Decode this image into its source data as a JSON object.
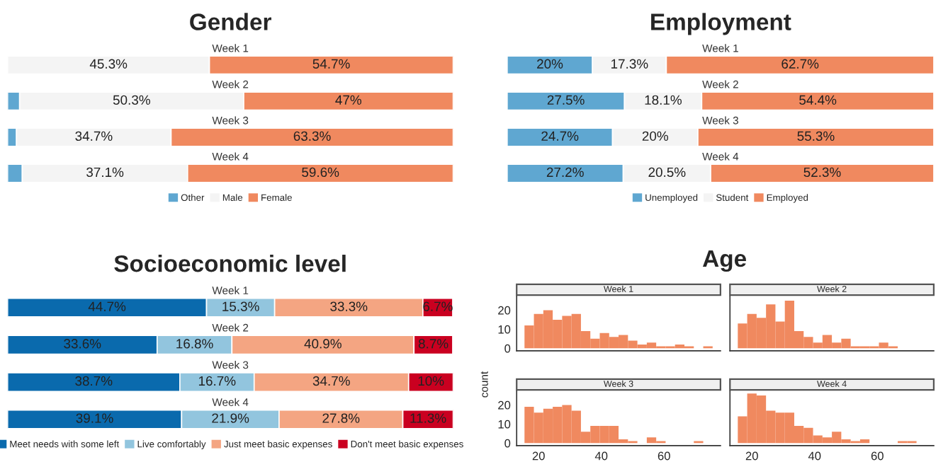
{
  "chart_data": [
    {
      "type": "bar",
      "orientation": "horizontal",
      "stacked": true,
      "title": "Gender",
      "categories": [
        "Week 1",
        "Week 2",
        "Week 3",
        "Week 4"
      ],
      "legend": "bottom",
      "series": [
        {
          "name": "Other",
          "color": "#5fa7d1",
          "values": [
            0,
            2.7,
            2.0,
            3.3
          ],
          "value_labels": [
            null,
            null,
            null,
            null
          ]
        },
        {
          "name": "Male",
          "color": "#f4f4f4",
          "values": [
            45.3,
            50.3,
            34.7,
            37.1
          ],
          "value_labels": [
            "45.3%",
            "50.3%",
            "34.7%",
            "37.1%"
          ]
        },
        {
          "name": "Female",
          "color": "#f0895f",
          "values": [
            54.7,
            47,
            63.3,
            59.6
          ],
          "value_labels": [
            "54.7%",
            "47%",
            "63.3%",
            "59.6%"
          ]
        }
      ]
    },
    {
      "type": "bar",
      "orientation": "horizontal",
      "stacked": true,
      "title": "Employment",
      "categories": [
        "Week 1",
        "Week 2",
        "Week 3",
        "Week 4"
      ],
      "legend": "bottom",
      "series": [
        {
          "name": "Unemployed",
          "color": "#5fa7d1",
          "values": [
            20,
            27.5,
            24.7,
            27.2
          ],
          "value_labels": [
            "20%",
            "27.5%",
            "24.7%",
            "27.2%"
          ]
        },
        {
          "name": "Student",
          "color": "#f4f4f4",
          "values": [
            17.3,
            18.1,
            20,
            20.5
          ],
          "value_labels": [
            "17.3%",
            "18.1%",
            "20%",
            "20.5%"
          ]
        },
        {
          "name": "Employed",
          "color": "#f0895f",
          "values": [
            62.7,
            54.4,
            55.3,
            52.3
          ],
          "value_labels": [
            "62.7%",
            "54.4%",
            "55.3%",
            "52.3%"
          ]
        }
      ]
    },
    {
      "type": "bar",
      "orientation": "horizontal",
      "stacked": true,
      "title": "Socioeconomic level",
      "categories": [
        "Week 1",
        "Week 2",
        "Week 3",
        "Week 4"
      ],
      "legend": "bottom",
      "series": [
        {
          "name": "Meet needs with some left",
          "color": "#0a6aad",
          "values": [
            44.7,
            33.6,
            38.7,
            39.1
          ],
          "value_labels": [
            "44.7%",
            "33.6%",
            "38.7%",
            "39.1%"
          ]
        },
        {
          "name": "Live comfortably",
          "color": "#92c5de",
          "values": [
            15.3,
            16.8,
            16.7,
            21.9
          ],
          "value_labels": [
            "15.3%",
            "16.8%",
            "16.7%",
            "21.9%"
          ]
        },
        {
          "name": "Just meet basic expenses",
          "color": "#f4a582",
          "values": [
            33.3,
            40.9,
            34.7,
            27.8
          ],
          "value_labels": [
            "33.3%",
            "40.9%",
            "34.7%",
            "27.8%"
          ]
        },
        {
          "name": "Don't meet basic expenses",
          "color": "#ca0020",
          "values": [
            6.7,
            8.7,
            10,
            11.3
          ],
          "value_labels": [
            "6.7%",
            "8.7%",
            "10%",
            "11.3%"
          ]
        }
      ]
    },
    {
      "type": "histogram",
      "title": "Age",
      "subtitle": "Week 1",
      "color": "#f0895f",
      "bins": [
        15.5,
        18.5,
        21.5,
        24.5,
        27.5,
        30.5,
        33.5,
        36.5,
        39.5,
        42.5,
        45.5,
        48.5,
        51.5,
        54.5,
        57.5,
        60.5,
        63.5,
        66.5,
        69.5,
        72.5,
        75.5
      ],
      "values": [
        12,
        18,
        20,
        15,
        17,
        18,
        9,
        5,
        8,
        6,
        7,
        4,
        2,
        3,
        1,
        1,
        2,
        1,
        0,
        1
      ],
      "xlim": [
        13,
        78
      ],
      "ylim": [
        -1.3,
        27.3
      ],
      "xticks": [
        20,
        40,
        60
      ],
      "yticks": [
        0,
        10,
        20
      ],
      "tick_labels": "y"
    },
    {
      "type": "histogram",
      "subtitle": "Week 2",
      "color": "#f0895f",
      "bins": [
        15.5,
        18.5,
        21.5,
        24.5,
        27.5,
        30.5,
        33.5,
        36.5,
        39.5,
        42.5,
        45.5,
        48.5,
        51.5,
        54.5,
        57.5,
        60.5,
        63.5,
        66.5,
        69.5,
        72.5,
        75.5
      ],
      "values": [
        13,
        18,
        16,
        23,
        14,
        25,
        9,
        6,
        3,
        7,
        3,
        5,
        1,
        1,
        1,
        3,
        1,
        0,
        0,
        0
      ],
      "xlim": [
        13,
        78
      ],
      "ylim": [
        -1.3,
        27.3
      ],
      "xticks": [
        20,
        40,
        60
      ],
      "yticks": [
        0,
        10,
        20
      ],
      "tick_labels": false
    },
    {
      "type": "histogram",
      "subtitle": "Week 3",
      "ylabel": "count",
      "color": "#f0895f",
      "bins": [
        15.5,
        18.5,
        21.5,
        24.5,
        27.5,
        30.5,
        33.5,
        36.5,
        39.5,
        42.5,
        45.5,
        48.5,
        51.5,
        54.5,
        57.5,
        60.5,
        63.5,
        66.5,
        69.5,
        72.5,
        75.5
      ],
      "values": [
        19,
        16,
        18,
        19,
        20,
        17,
        6,
        9,
        9,
        9,
        2,
        1,
        0,
        3,
        1,
        0,
        0,
        0,
        1,
        0
      ],
      "xlim": [
        13,
        78
      ],
      "ylim": [
        -1.3,
        27.3
      ],
      "xticks": [
        20,
        40,
        60
      ],
      "yticks": [
        0,
        10,
        20
      ]
    },
    {
      "type": "histogram",
      "subtitle": "Week 4",
      "color": "#f0895f",
      "bins": [
        15.5,
        18.5,
        21.5,
        24.5,
        27.5,
        30.5,
        33.5,
        36.5,
        39.5,
        42.5,
        45.5,
        48.5,
        51.5,
        54.5,
        57.5,
        60.5,
        63.5,
        66.5,
        69.5,
        72.5,
        75.5
      ],
      "values": [
        14,
        26,
        25,
        17,
        16,
        16,
        9,
        8,
        4,
        3,
        6,
        2,
        1,
        2,
        0,
        0,
        0,
        1,
        1,
        0
      ],
      "xlim": [
        13,
        78
      ],
      "ylim": [
        -1.3,
        27.3
      ],
      "xticks": [
        20,
        40,
        60
      ],
      "yticks": [
        0,
        10,
        20
      ],
      "tick_labels": "x"
    }
  ]
}
